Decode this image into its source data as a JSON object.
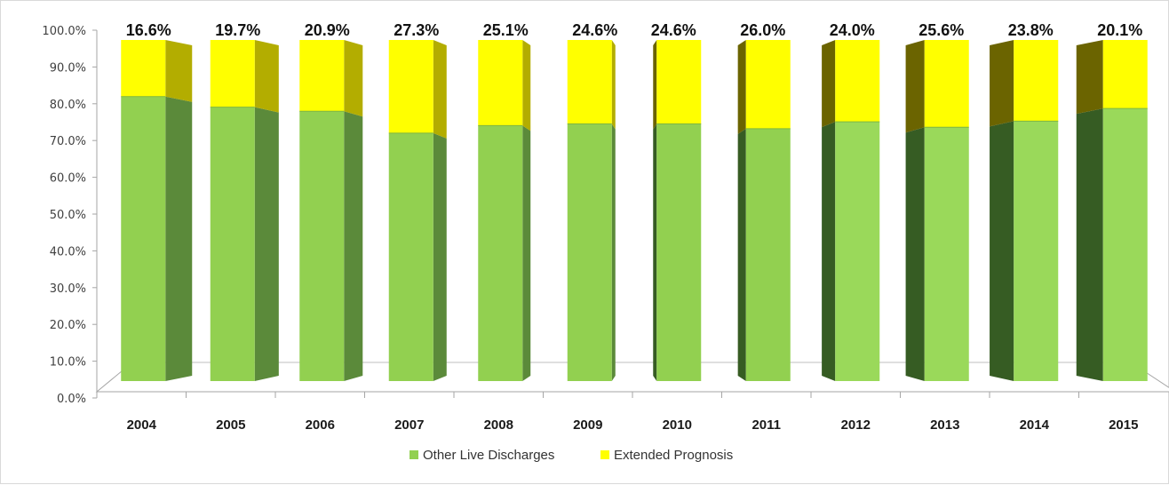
{
  "chart_data": {
    "type": "bar",
    "stacked": true,
    "percent_stacked": true,
    "three_d": true,
    "categories": [
      "2004",
      "2005",
      "2006",
      "2007",
      "2008",
      "2009",
      "2010",
      "2011",
      "2012",
      "2013",
      "2014",
      "2015"
    ],
    "series": [
      {
        "name": "Other Live Discharges",
        "color": "#92d050",
        "values": [
          83.4,
          80.3,
          79.1,
          72.7,
          74.9,
          75.4,
          75.4,
          74.0,
          76.0,
          74.4,
          76.2,
          79.9
        ]
      },
      {
        "name": "Extended Prognosis",
        "color": "#ffff00",
        "values": [
          16.6,
          19.7,
          20.9,
          27.3,
          25.1,
          24.6,
          24.6,
          26.0,
          24.0,
          25.6,
          23.8,
          20.1
        ]
      }
    ],
    "data_labels": [
      "16.6%",
      "19.7%",
      "20.9%",
      "27.3%",
      "25.1%",
      "24.6%",
      "24.6%",
      "26.0%",
      "24.0%",
      "25.6%",
      "23.8%",
      "20.1%"
    ],
    "y_ticks": [
      "0.0%",
      "10.0%",
      "20.0%",
      "30.0%",
      "40.0%",
      "50.0%",
      "60.0%",
      "70.0%",
      "80.0%",
      "90.0%",
      "100.0%"
    ],
    "ylim": [
      0,
      100
    ],
    "grid": false,
    "legend_placement": "bottom",
    "title": "",
    "xlabel": "",
    "ylabel": ""
  },
  "legend": {
    "items": [
      {
        "label": "Other Live Discharges",
        "color": "#92d050"
      },
      {
        "label": "Extended Prognosis",
        "color": "#ffff00"
      }
    ]
  }
}
